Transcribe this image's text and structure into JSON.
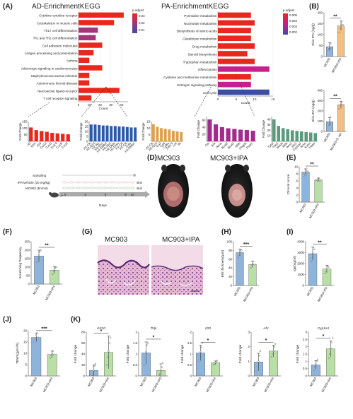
{
  "panels": {
    "A": "(A)",
    "B": "(B)",
    "C": "(C)",
    "D": "(D)",
    "E": "(E)",
    "F": "(F)",
    "G": "(G)",
    "H": "(H)",
    "I": "(I)",
    "J": "(J)",
    "K": "(K)"
  },
  "kegg": {
    "ad_title": "AD-EnrichmentKEGG",
    "pa_title": "PA-EnrichmentKEGG",
    "padjust_label": "p.adjust",
    "count_label": "Count",
    "ad_legend_ticks": [
      "0.03",
      "0.02",
      "0.01"
    ],
    "pa_legend_ticks": [
      "0.005",
      "0.004",
      "0.003",
      "0.002"
    ]
  },
  "foldchange_label": "Fold Change",
  "fold_change_label": "Fold change",
  "groups": {
    "mc903": "MC903",
    "ipa": "MC903+IPA",
    "sepi": "MC903+S. epi"
  },
  "timeline": {
    "sampling": "Sampling",
    "ipa": "IPA/vehicle (20 mg/kg)",
    "mc903": "MC903 (5nmol)",
    "skin": "skin",
    "days": "Days",
    "ticks": [
      "0",
      "3",
      "6",
      "9",
      "10"
    ]
  },
  "photo_titles": {
    "left": "MC903",
    "right": "MC903+IPA"
  },
  "sig": {
    "two": "**",
    "three": "***",
    "one": "*"
  },
  "colors": {
    "mc903_bar": "#8fb4db",
    "ipa_bar": "#b9dfa6",
    "orange_bar": "#f5c07e",
    "kegg_red": "#e8281f",
    "kegg_blue": "#3d4ea0",
    "kegg_magenta": "#c71f8b",
    "blue_fc": "#2c5aa8",
    "orange_fc": "#dca04e",
    "purple_fc": "#a02c8c",
    "green_fc": "#5b9a7c"
  },
  "chart_data": [
    {
      "id": "A-AD",
      "type": "bar",
      "title": "AD-EnrichmentKEGG",
      "xlabel": "Count",
      "categories": [
        "Cytokine-cytokine receptor",
        "Cytoskeleton in muscle cells",
        "Th17 cell differentiation",
        "Th1 and Th2 cell differentiation",
        "Cell adhesion molecules",
        "Antigen processing and presentation",
        "Asthma",
        "Adrenergic signaling in cardiomyocytes",
        "Staphylococcus aureus infection",
        "Autoimmune thyroid disease",
        "Neuroactive ligand-receptor",
        "T cell receptor signaling"
      ],
      "values": [
        42,
        33,
        18,
        16,
        22,
        14,
        10,
        22,
        10,
        10,
        38,
        12
      ],
      "p_adjust": [
        0.01,
        0.01,
        0.02,
        0.02,
        0.01,
        0.01,
        0.01,
        0.01,
        0.01,
        0.01,
        0.01,
        0.01
      ],
      "xticks": [
        0,
        10,
        20,
        30,
        40
      ],
      "xlim": [
        0,
        46
      ]
    },
    {
      "id": "A-PA",
      "type": "bar",
      "title": "PA-EnrichmentKEGG",
      "xlabel": "Count",
      "categories": [
        "Pyrimidine metabolism",
        "Nucleotide metabolism",
        "Biosynthesis of amino acids",
        "Glutathione metabolism",
        "Drug metabolism",
        "Steroid biosynthesis",
        "Tryptophan metabolism",
        "Efferocytosis",
        "Cysteine and methionine metabolism",
        "Estrogen signaling pathway",
        "Cell cycle"
      ],
      "values": [
        9,
        10,
        9,
        9,
        10,
        8,
        10,
        14,
        9,
        9,
        14
      ],
      "p_adjust": [
        0.002,
        0.002,
        0.002,
        0.002,
        0.002,
        0.002,
        0.002,
        0.003,
        0.002,
        0.003,
        0.005
      ],
      "xticks": [
        0,
        5,
        10,
        15
      ],
      "xlim": [
        0,
        15
      ]
    },
    {
      "id": "A-fc-red",
      "type": "bar",
      "ylabel": "Fold Change",
      "categories": [
        "Il2",
        "Il1rn",
        "Il19",
        "Ccl12",
        "Cxcl3",
        "Ccl24",
        "Cxcl5",
        "Cxcl2"
      ],
      "values": [
        105,
        85,
        78,
        72,
        64,
        60,
        57,
        53
      ],
      "yticks": [
        50,
        100,
        150
      ],
      "ylim": [
        0,
        150
      ]
    },
    {
      "id": "A-fc-blue",
      "type": "bar",
      "ylabel": "Fold Change",
      "categories": [
        "H2-Ob",
        "H2-Q10",
        "H2-Aa",
        "H2-Eb1",
        "H2-DMb2",
        "H2-Ab1",
        "H2-DMa",
        "H2-Dma",
        "H2-Q4",
        "H2-Q6",
        "Ciita",
        "H2-DMb1"
      ],
      "values": [
        17,
        17,
        16.5,
        16,
        16,
        15.5,
        15.5,
        15,
        15,
        14.5,
        14,
        14
      ],
      "yticks": [
        0,
        5,
        10,
        15,
        20
      ],
      "ylim": [
        0,
        20
      ]
    },
    {
      "id": "A-fc-orange",
      "type": "bar",
      "ylabel": "Fold Change",
      "categories": [
        "H2-Ob",
        "H2-Q10",
        "Cd3",
        "Cd4",
        "Cd8a",
        "Zap70",
        "Lck",
        "Itk"
      ],
      "values": [
        13,
        11,
        10,
        9.5,
        9,
        8,
        7.5,
        7
      ],
      "yticks": [
        5,
        10,
        15
      ],
      "ylim": [
        0,
        15
      ]
    },
    {
      "id": "A-fc-purple",
      "type": "bar",
      "ylabel": "Fold Change",
      "categories": [
        "Cth",
        "Ahr",
        "Asns",
        "Bcat2",
        "Bcat1",
        "Aldh",
        "Phgdh",
        "Psat1"
      ],
      "values": [
        62,
        48,
        40,
        37,
        35,
        33,
        32,
        30
      ],
      "yticks": [
        20,
        40,
        60
      ],
      "ylim": [
        0,
        70
      ]
    },
    {
      "id": "A-fc-green",
      "type": "bar",
      "ylabel": "Fold Change",
      "categories": [
        "Tph2",
        "Tdo2",
        "Maob",
        "Aldh",
        "Aox1",
        "Ido1",
        "Cyp1a1",
        "Kmo",
        "Kynu",
        "Haao"
      ],
      "values": [
        40,
        28,
        24,
        22,
        20,
        19,
        18,
        17,
        16,
        15
      ],
      "yticks": [
        10,
        20,
        30,
        40
      ],
      "ylim": [
        0,
        45
      ]
    },
    {
      "id": "B1",
      "type": "bar",
      "ylabel": "Skin IPA (ng/g)",
      "categories": [
        "MC903",
        "MC903+IPA"
      ],
      "values": [
        45,
        140
      ],
      "errors": [
        18,
        22
      ],
      "points": [
        [
          30,
          40,
          55,
          60,
          35
        ],
        [
          110,
          130,
          150,
          160,
          145
        ]
      ],
      "yticks": [
        0,
        50,
        100,
        150,
        200
      ],
      "ylim": [
        0,
        200
      ]
    },
    {
      "id": "B2",
      "type": "bar",
      "ylabel": "Skin IPA (ng/g)",
      "categories": [
        "MC903",
        "MC903+S. epi"
      ],
      "values": [
        95,
        260
      ],
      "errors": [
        40,
        35
      ],
      "points": [
        [
          60,
          90,
          110,
          140,
          70
        ],
        [
          220,
          250,
          270,
          290,
          260
        ]
      ],
      "yticks": [
        0,
        100,
        200,
        300,
        400
      ],
      "ylim": [
        0,
        400
      ]
    },
    {
      "id": "E",
      "type": "bar",
      "ylabel": "Clinical score",
      "categories": [
        "MC903",
        "MC903+IPA"
      ],
      "values": [
        8.5,
        6.3
      ],
      "errors": [
        0.9,
        0.5
      ],
      "points": [
        [
          7.5,
          8.2,
          9,
          9.5,
          8.8
        ],
        [
          5.9,
          6.2,
          6.5,
          6.8,
          6.0
        ]
      ],
      "yticks": [
        0,
        2,
        4,
        6,
        8,
        10
      ],
      "ylim": [
        0,
        10
      ]
    },
    {
      "id": "F",
      "type": "bar",
      "ylabel": "Scratching frequency",
      "categories": [
        "MC903",
        "MC903+IPA"
      ],
      "values": [
        165,
        82
      ],
      "errors": [
        35,
        20
      ],
      "points": [
        [
          130,
          150,
          170,
          190,
          200
        ],
        [
          60,
          75,
          85,
          95,
          100
        ]
      ],
      "yticks": [
        0,
        50,
        100,
        150,
        200,
        250
      ],
      "ylim": [
        0,
        250
      ]
    },
    {
      "id": "H",
      "type": "bar",
      "ylabel": "EM thickness(µm)",
      "categories": [
        "MC903",
        "MC903+IPA"
      ],
      "values": [
        75,
        48
      ],
      "errors": [
        8,
        7
      ],
      "points": [
        [
          65,
          70,
          78,
          82,
          80
        ],
        [
          40,
          45,
          50,
          55,
          48
        ]
      ],
      "yticks": [
        0,
        20,
        40,
        60,
        80,
        100
      ],
      "ylim": [
        0,
        100
      ]
    },
    {
      "id": "I",
      "type": "bar",
      "ylabel": "IgE(ng/ml)",
      "categories": [
        "MC903",
        "MC903+IPA"
      ],
      "values": [
        2900,
        1500
      ],
      "errors": [
        600,
        350
      ],
      "points": [
        [
          2200,
          2600,
          3000,
          3500,
          3300
        ],
        [
          1100,
          1300,
          1500,
          1800,
          1700
        ]
      ],
      "yticks": [
        0,
        1000,
        2000,
        3000,
        4000
      ],
      "ylim": [
        0,
        4000
      ]
    },
    {
      "id": "J",
      "type": "bar",
      "ylabel": "TEWL(g/m²/h)",
      "categories": [
        "MC903",
        "MC903+IPA"
      ],
      "values": [
        17,
        9.5
      ],
      "errors": [
        1.8,
        1.5
      ],
      "points": [
        [
          15,
          16.5,
          18,
          19,
          17
        ],
        [
          8,
          9,
          10,
          11,
          9.5
        ]
      ],
      "yticks": [
        0,
        5,
        10,
        15,
        20
      ],
      "ylim": [
        0,
        20
      ]
    },
    {
      "id": "K1",
      "type": "bar",
      "title": "Krt10",
      "ylabel": "Fold change",
      "categories": [
        "MC903",
        "MC903+IPA"
      ],
      "values": [
        10,
        43
      ],
      "errors": [
        10,
        30
      ],
      "points": [
        [
          2,
          5,
          10,
          18,
          22
        ],
        [
          20,
          35,
          45,
          60,
          70
        ]
      ],
      "yticks": [
        0,
        20,
        40,
        60,
        80
      ],
      "ylim": [
        0,
        80
      ]
    },
    {
      "id": "K2",
      "type": "bar",
      "title": "Tslp",
      "ylabel": "Fold change",
      "categories": [
        "MC903",
        "MC903+IPA"
      ],
      "values": [
        1.05,
        0.25
      ],
      "errors": [
        0.5,
        0.3
      ],
      "points": [
        [
          0.5,
          0.8,
          1.1,
          1.4,
          1.5
        ],
        [
          0.05,
          0.1,
          0.2,
          0.4,
          0.6
        ]
      ],
      "yticks": [
        0,
        0.5,
        1.0,
        1.5,
        2.0
      ],
      "ylim": [
        0,
        2.0
      ]
    },
    {
      "id": "K3",
      "type": "bar",
      "title": "Il33",
      "ylabel": "Fold change",
      "categories": [
        "MC903",
        "MC903+IPA"
      ],
      "values": [
        1.05,
        0.6
      ],
      "errors": [
        0.35,
        0.08
      ],
      "points": [
        [
          0.7,
          0.9,
          1.1,
          1.3,
          1.5
        ],
        [
          0.5,
          0.55,
          0.6,
          0.65,
          0.7
        ]
      ],
      "yticks": [
        0,
        0.5,
        1.0,
        1.5,
        2.0
      ],
      "ylim": [
        0,
        2.0
      ]
    },
    {
      "id": "K4",
      "type": "bar",
      "title": "Ahr",
      "ylabel": "Fold change",
      "categories": [
        "MC903",
        "MC903+IPA"
      ],
      "values": [
        0.95,
        1.7
      ],
      "errors": [
        0.6,
        0.4
      ],
      "points": [
        [
          0.3,
          0.6,
          1.0,
          1.4,
          1.7
        ],
        [
          1.3,
          1.5,
          1.7,
          2.0,
          2.2
        ]
      ],
      "yticks": [
        0,
        1,
        2,
        3
      ],
      "ylim": [
        0,
        3
      ]
    },
    {
      "id": "K5",
      "type": "bar",
      "title": "Cyp1a1",
      "ylabel": "Fold change",
      "categories": [
        "MC903",
        "MC903+IPA"
      ],
      "values": [
        0.75,
        1.85
      ],
      "errors": [
        0.3,
        0.55
      ],
      "points": [
        [
          0.4,
          0.6,
          0.8,
          1.0,
          1.1
        ],
        [
          1.2,
          1.5,
          1.9,
          2.3,
          2.6
        ]
      ],
      "yticks": [
        0,
        0.5,
        1.0,
        1.5,
        2.0,
        2.5,
        3.0
      ],
      "ylim": [
        0,
        3.0
      ]
    }
  ]
}
